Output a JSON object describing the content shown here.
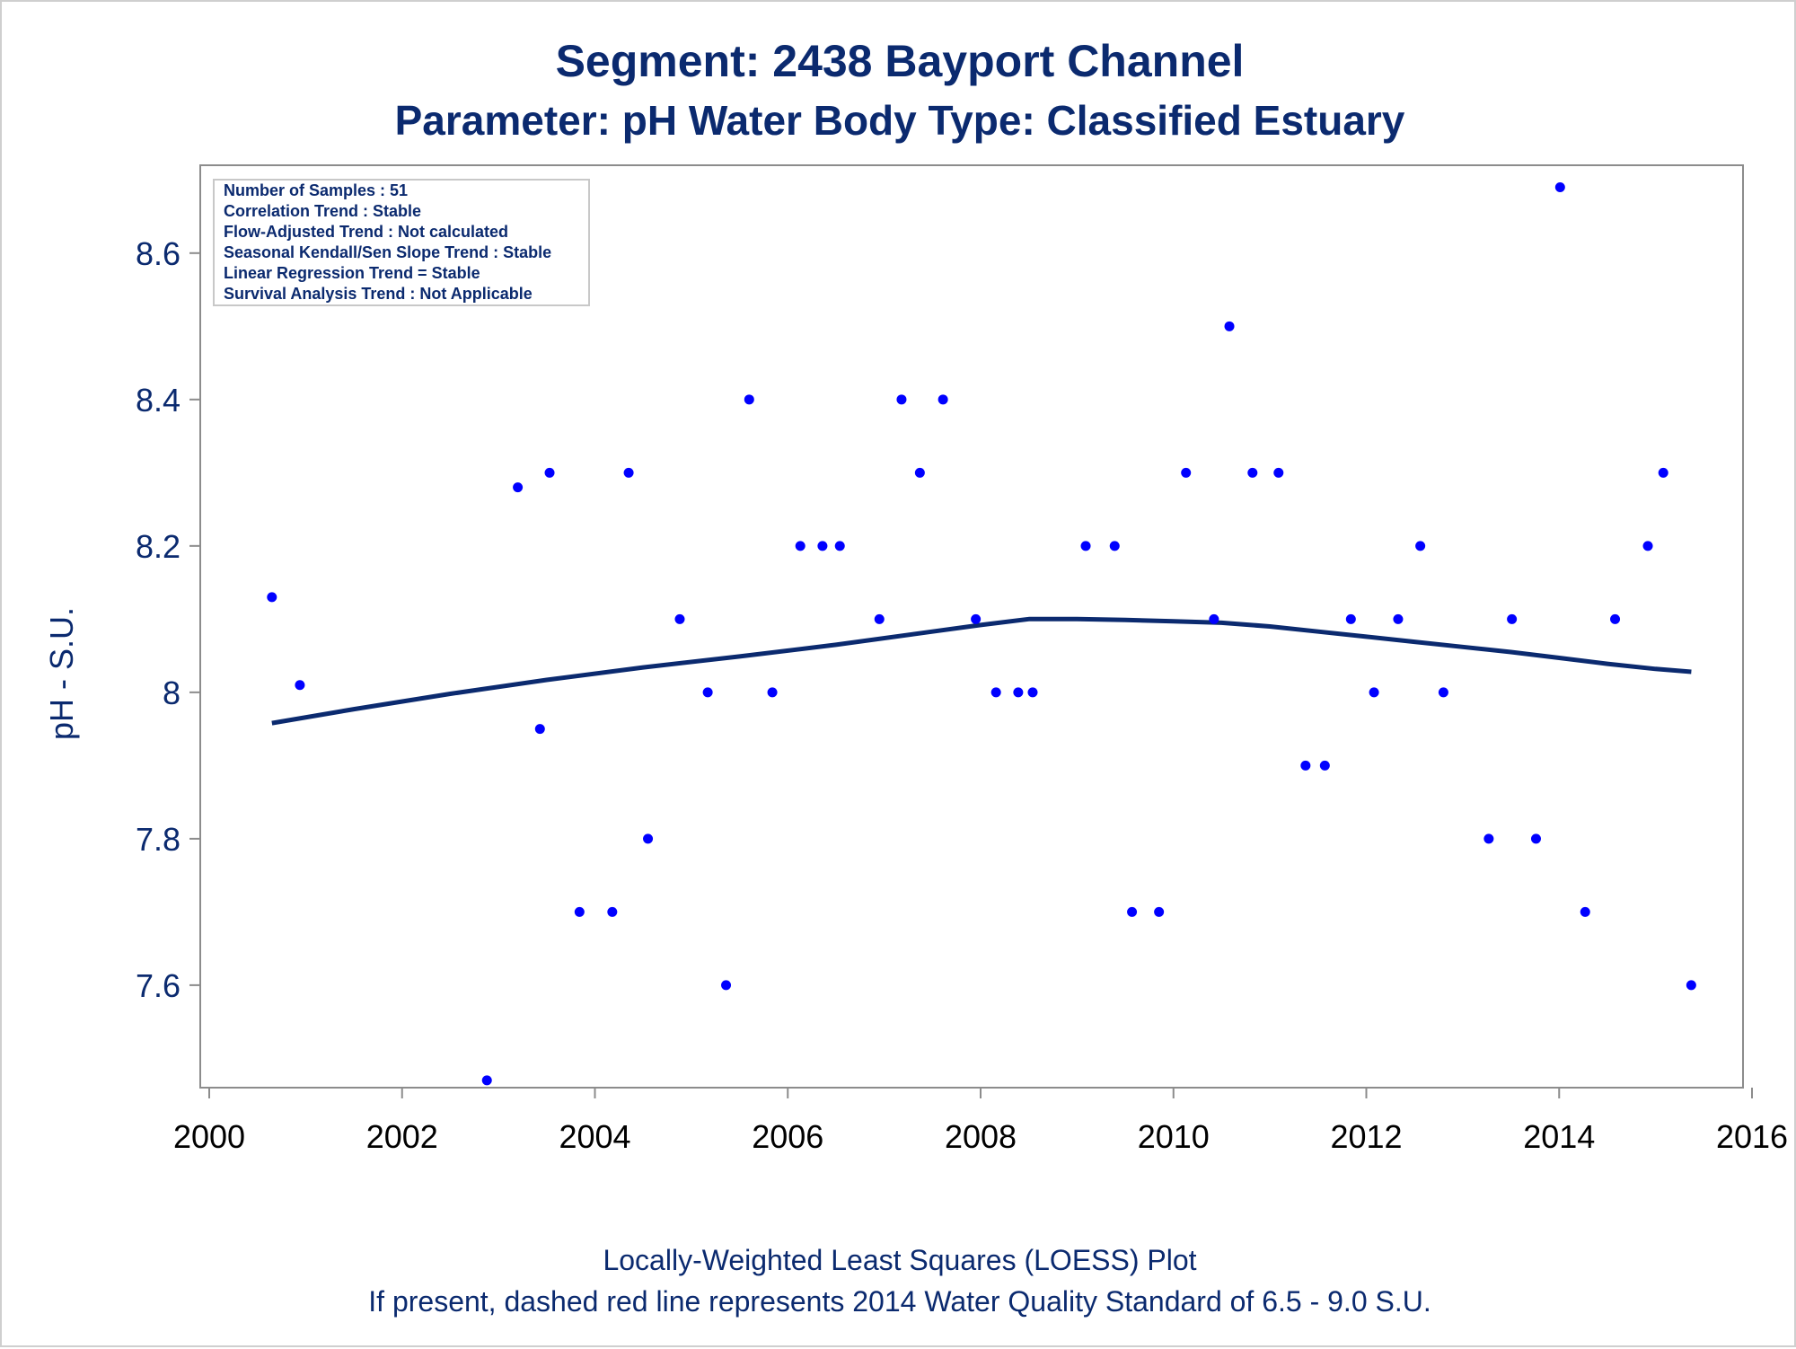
{
  "chart_data": {
    "type": "scatter",
    "title": "Segment: 2438  Bayport Channel",
    "subtitle": "Parameter: pH   Water Body Type: Classified Estuary",
    "xlabel": "",
    "ylabel": "pH - S.U.",
    "xlim": [
      2000,
      2016
    ],
    "ylim": [
      7.46,
      8.72
    ],
    "x_ticks": [
      "2000",
      "2002",
      "2004",
      "2006",
      "2008",
      "2010",
      "2012",
      "2014",
      "2016"
    ],
    "y_ticks": [
      "7.6",
      "7.8",
      "8",
      "8.2",
      "8.4",
      "8.6"
    ],
    "grid": false,
    "stats_box": {
      "lines": [
        "Number of Samples : 51",
        "Correlation Trend : Stable",
        "Flow-Adjusted Trend : Not calculated",
        "Seasonal Kendall/Sen Slope Trend : Stable",
        "Linear Regression Trend = Stable",
        "Survival Analysis Trend : Not Applicable"
      ],
      "placement": "top-left"
    },
    "series": [
      {
        "kind": "points",
        "color": "#0000ff",
        "points": [
          [
            2000.65,
            8.13
          ],
          [
            2000.94,
            8.01
          ],
          [
            2002.88,
            7.47
          ],
          [
            2003.2,
            8.28
          ],
          [
            2003.43,
            7.95
          ],
          [
            2003.53,
            8.3
          ],
          [
            2003.84,
            7.7
          ],
          [
            2004.18,
            7.7
          ],
          [
            2004.35,
            8.3
          ],
          [
            2004.55,
            7.8
          ],
          [
            2004.88,
            8.1
          ],
          [
            2005.17,
            8.0
          ],
          [
            2005.36,
            7.6
          ],
          [
            2005.6,
            8.4
          ],
          [
            2005.84,
            8.0
          ],
          [
            2006.13,
            8.2
          ],
          [
            2006.36,
            8.2
          ],
          [
            2006.54,
            8.2
          ],
          [
            2006.95,
            8.1
          ],
          [
            2007.18,
            8.4
          ],
          [
            2007.37,
            8.3
          ],
          [
            2007.61,
            8.4
          ],
          [
            2007.95,
            8.1
          ],
          [
            2008.16,
            8.0
          ],
          [
            2008.39,
            8.0
          ],
          [
            2008.54,
            8.0
          ],
          [
            2009.09,
            8.2
          ],
          [
            2009.39,
            8.2
          ],
          [
            2009.57,
            7.7
          ],
          [
            2009.85,
            7.7
          ],
          [
            2010.13,
            8.3
          ],
          [
            2010.42,
            8.1
          ],
          [
            2010.58,
            8.5
          ],
          [
            2010.82,
            8.3
          ],
          [
            2011.09,
            8.3
          ],
          [
            2011.37,
            7.9
          ],
          [
            2011.57,
            7.9
          ],
          [
            2011.84,
            8.1
          ],
          [
            2012.08,
            8.0
          ],
          [
            2012.33,
            8.1
          ],
          [
            2012.56,
            8.2
          ],
          [
            2012.8,
            8.0
          ],
          [
            2013.27,
            7.8
          ],
          [
            2013.51,
            8.1
          ],
          [
            2013.76,
            7.8
          ],
          [
            2014.01,
            8.69
          ],
          [
            2014.27,
            7.7
          ],
          [
            2014.58,
            8.1
          ],
          [
            2014.92,
            8.2
          ],
          [
            2015.08,
            8.3
          ],
          [
            2015.37,
            7.6
          ]
        ]
      },
      {
        "kind": "loess",
        "color": "#0b2a6f",
        "points": [
          [
            2000.65,
            7.958
          ],
          [
            2001.5,
            7.977
          ],
          [
            2002.5,
            7.998
          ],
          [
            2003.5,
            8.017
          ],
          [
            2004.5,
            8.034
          ],
          [
            2005.5,
            8.049
          ],
          [
            2006.5,
            8.065
          ],
          [
            2007.5,
            8.083
          ],
          [
            2008.0,
            8.092
          ],
          [
            2008.5,
            8.1
          ],
          [
            2009.0,
            8.1
          ],
          [
            2009.5,
            8.099
          ],
          [
            2010.0,
            8.097
          ],
          [
            2010.5,
            8.095
          ],
          [
            2011.0,
            8.09
          ],
          [
            2011.5,
            8.083
          ],
          [
            2012.0,
            8.076
          ],
          [
            2012.5,
            8.069
          ],
          [
            2013.0,
            8.062
          ],
          [
            2013.5,
            8.055
          ],
          [
            2014.0,
            8.047
          ],
          [
            2014.5,
            8.039
          ],
          [
            2015.0,
            8.032
          ],
          [
            2015.37,
            8.028
          ]
        ]
      }
    ],
    "footnotes": [
      "Locally-Weighted Least Squares (LOESS) Plot",
      "If present, dashed red line represents 2014 Water Quality Standard of 6.5 - 9.0 S.U."
    ]
  }
}
